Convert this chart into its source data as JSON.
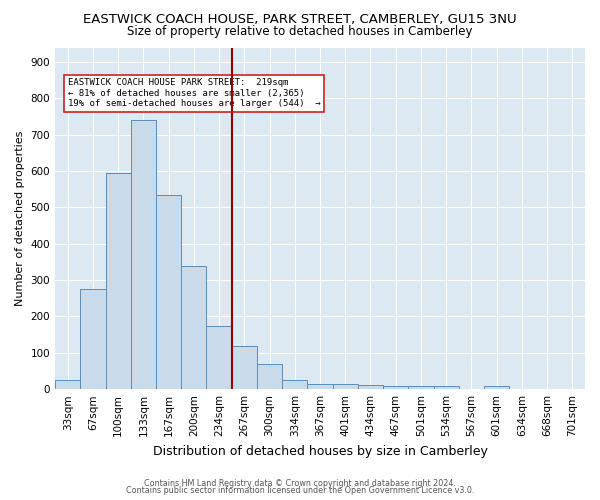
{
  "title_line1": "EASTWICK COACH HOUSE, PARK STREET, CAMBERLEY, GU15 3NU",
  "title_line2": "Size of property relative to detached houses in Camberley",
  "xlabel": "Distribution of detached houses by size in Camberley",
  "ylabel": "Number of detached properties",
  "footer_line1": "Contains HM Land Registry data © Crown copyright and database right 2024.",
  "footer_line2": "Contains public sector information licensed under the Open Government Licence v3.0.",
  "bar_labels": [
    "33sqm",
    "67sqm",
    "100sqm",
    "133sqm",
    "167sqm",
    "200sqm",
    "234sqm",
    "267sqm",
    "300sqm",
    "334sqm",
    "367sqm",
    "401sqm",
    "434sqm",
    "467sqm",
    "501sqm",
    "534sqm",
    "567sqm",
    "601sqm",
    "634sqm",
    "668sqm",
    "701sqm"
  ],
  "bar_values": [
    25,
    275,
    595,
    740,
    535,
    340,
    175,
    118,
    68,
    25,
    15,
    15,
    12,
    8,
    9,
    8,
    0,
    8,
    0,
    0,
    0
  ],
  "bar_color": "#c9daea",
  "bar_edgecolor": "#5b8db8",
  "vline_x": 6.5,
  "vline_color": "#990000",
  "annotation_text": "EASTWICK COACH HOUSE PARK STREET:  219sqm\n← 81% of detached houses are smaller (2,365)\n19% of semi-detached houses are larger (544)  →",
  "annotation_box_color": "white",
  "annotation_box_edgecolor": "#cc2222",
  "ylim": [
    0,
    940
  ],
  "yticks": [
    0,
    100,
    200,
    300,
    400,
    500,
    600,
    700,
    800,
    900
  ],
  "background_color": "#ffffff",
  "plot_bg_color": "#dce8f2",
  "grid_color": "#ffffff",
  "title_fontsize": 9.5,
  "subtitle_fontsize": 8.5,
  "tick_fontsize": 7.5,
  "ylabel_fontsize": 8,
  "xlabel_fontsize": 9
}
